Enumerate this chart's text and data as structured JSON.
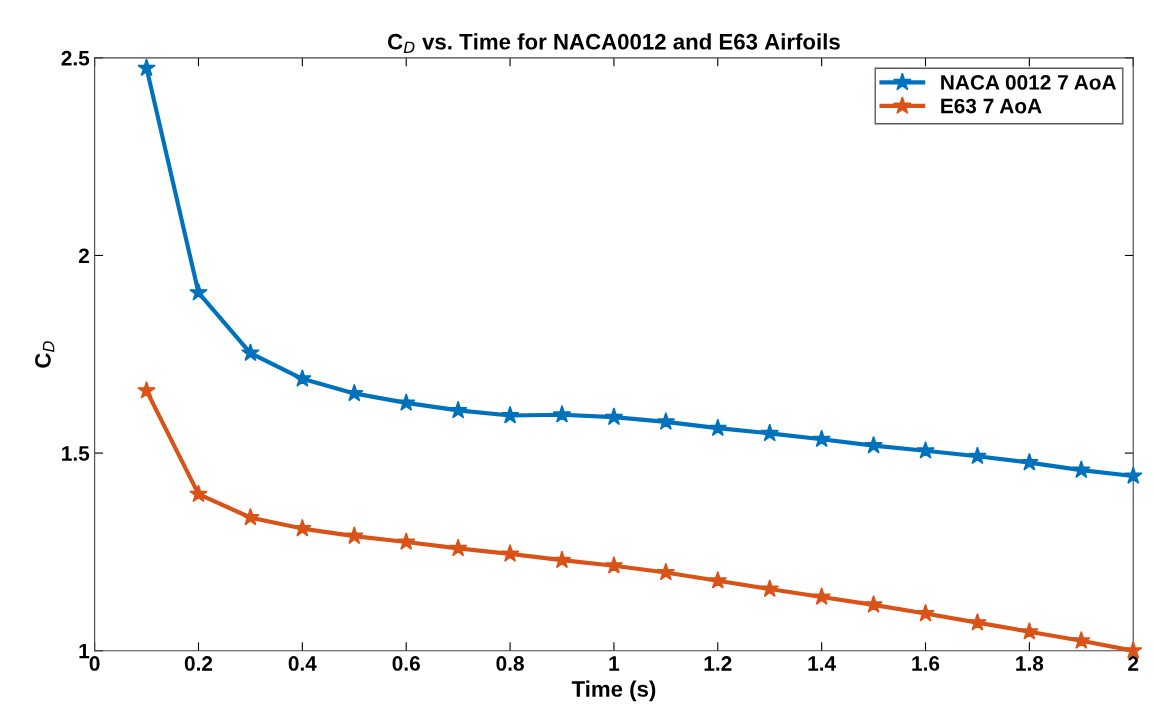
{
  "chart_data": {
    "type": "line",
    "title": "C$_{D}$ vs. Time for NACA0012 and E63 Airfoils",
    "xlabel": "Time (s)",
    "ylabel": "C$_{D}$",
    "x": [
      0.1,
      0.2,
      0.3,
      0.4,
      0.5,
      0.6,
      0.7,
      0.8,
      0.9,
      1.0,
      1.1,
      1.2,
      1.3,
      1.4,
      1.5,
      1.6,
      1.7,
      1.8,
      1.9,
      2.0
    ],
    "series": [
      {
        "name": "NACA 0012 7 AoA",
        "color": "#0072bd",
        "values": [
          2.474,
          1.906,
          1.753,
          1.688,
          1.651,
          1.627,
          1.608,
          1.595,
          1.597,
          1.591,
          1.579,
          1.563,
          1.55,
          1.535,
          1.519,
          1.506,
          1.492,
          1.476,
          1.457,
          1.442
        ]
      },
      {
        "name": "E63 7 AoA",
        "color": "#d95319",
        "values": [
          1.658,
          1.396,
          1.337,
          1.309,
          1.29,
          1.275,
          1.259,
          1.245,
          1.229,
          1.215,
          1.198,
          1.177,
          1.156,
          1.136,
          1.116,
          1.094,
          1.071,
          1.048,
          1.025,
          1.0
        ]
      }
    ],
    "xlim": [
      0,
      2
    ],
    "ylim": [
      1,
      2.5
    ],
    "xticks": [
      0,
      0.2,
      0.4,
      0.6,
      0.8,
      1,
      1.2,
      1.4,
      1.6,
      1.8,
      2
    ],
    "yticks": [
      1,
      1.5,
      2,
      2.5
    ],
    "grid": false,
    "legend": "top right",
    "marker": "star",
    "line_style": "solid"
  }
}
